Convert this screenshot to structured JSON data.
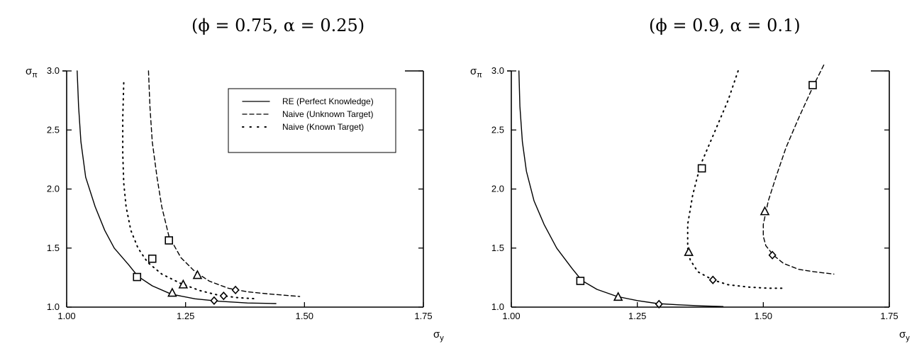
{
  "chart_data": [
    {
      "type": "line",
      "title": "(ϕ = 0.75, α = 0.25)",
      "xlabel": "σy",
      "ylabel": "σπ",
      "xlim": [
        1.0,
        1.75
      ],
      "ylim": [
        1.0,
        3.0
      ],
      "xticks": [
        "1.00",
        "1.25",
        "1.50",
        "1.75"
      ],
      "yticks": [
        "1.0",
        "1.5",
        "2.0",
        "2.5",
        "3.0"
      ],
      "legend": {
        "placement": "top-right",
        "entries": [
          "RE (Perfect Knowledge)",
          "Naive (Unknown Target)",
          "Naive (Known Target)"
        ]
      },
      "series": [
        {
          "name": "RE (Perfect Knowledge)",
          "style": "solid",
          "x": [
            1.022,
            1.025,
            1.03,
            1.04,
            1.06,
            1.08,
            1.1,
            1.13,
            1.15,
            1.18,
            1.22,
            1.27,
            1.32,
            1.38,
            1.44
          ],
          "y": [
            3.0,
            2.7,
            2.4,
            2.1,
            1.85,
            1.65,
            1.5,
            1.36,
            1.26,
            1.18,
            1.11,
            1.07,
            1.05,
            1.035,
            1.03
          ]
        },
        {
          "name": "Naive (Unknown Target)",
          "style": "dashed",
          "x": [
            1.172,
            1.175,
            1.18,
            1.19,
            1.2,
            1.215,
            1.24,
            1.27,
            1.3,
            1.34,
            1.38,
            1.43,
            1.49
          ],
          "y": [
            3.0,
            2.7,
            2.4,
            2.1,
            1.85,
            1.6,
            1.42,
            1.3,
            1.22,
            1.16,
            1.13,
            1.11,
            1.09
          ]
        },
        {
          "name": "Naive (Known Target)",
          "style": "dotted",
          "x": [
            1.12,
            1.118,
            1.118,
            1.12,
            1.125,
            1.135,
            1.15,
            1.17,
            1.2,
            1.24,
            1.28,
            1.32,
            1.36,
            1.4
          ],
          "y": [
            2.9,
            2.6,
            2.3,
            2.05,
            1.85,
            1.65,
            1.5,
            1.38,
            1.28,
            1.2,
            1.14,
            1.1,
            1.08,
            1.07
          ]
        }
      ],
      "markers": [
        {
          "shape": "square",
          "x": 1.148,
          "y": 1.255
        },
        {
          "shape": "square",
          "x": 1.18,
          "y": 1.41
        },
        {
          "shape": "square",
          "x": 1.215,
          "y": 1.565
        },
        {
          "shape": "triangle",
          "x": 1.222,
          "y": 1.12
        },
        {
          "shape": "triangle",
          "x": 1.245,
          "y": 1.19
        },
        {
          "shape": "triangle",
          "x": 1.275,
          "y": 1.27
        },
        {
          "shape": "diamond",
          "x": 1.31,
          "y": 1.055
        },
        {
          "shape": "diamond",
          "x": 1.33,
          "y": 1.095
        },
        {
          "shape": "diamond",
          "x": 1.355,
          "y": 1.145
        }
      ]
    },
    {
      "type": "line",
      "title": "(ϕ = 0.9, α = 0.1)",
      "xlabel": "σy",
      "ylabel": "σπ",
      "xlim": [
        1.0,
        1.75
      ],
      "ylim": [
        1.0,
        3.0
      ],
      "xticks": [
        "1.00",
        "1.25",
        "1.50",
        "1.75"
      ],
      "yticks": [
        "1.0",
        "1.5",
        "2.0",
        "2.5",
        "3.0"
      ],
      "series": [
        {
          "name": "RE (Perfect Knowledge)",
          "style": "solid",
          "x": [
            1.015,
            1.017,
            1.022,
            1.03,
            1.045,
            1.065,
            1.09,
            1.12,
            1.14,
            1.17,
            1.21,
            1.25,
            1.29,
            1.33,
            1.38,
            1.42
          ],
          "y": [
            3.0,
            2.7,
            2.4,
            2.15,
            1.9,
            1.7,
            1.5,
            1.33,
            1.225,
            1.15,
            1.09,
            1.055,
            1.03,
            1.02,
            1.01,
            1.005
          ]
        },
        {
          "name": "Naive (Known Target)",
          "style": "dotted",
          "x": [
            1.45,
            1.43,
            1.4,
            1.375,
            1.36,
            1.35,
            1.35,
            1.355,
            1.37,
            1.4,
            1.43,
            1.47,
            1.51,
            1.54
          ],
          "y": [
            3.0,
            2.75,
            2.45,
            2.2,
            1.95,
            1.7,
            1.5,
            1.4,
            1.3,
            1.23,
            1.19,
            1.17,
            1.16,
            1.16
          ]
        },
        {
          "name": "Naive (Unknown Target)",
          "style": "dashed",
          "x": [
            1.62,
            1.6,
            1.57,
            1.545,
            1.525,
            1.51,
            1.5,
            1.5,
            1.505,
            1.52,
            1.54,
            1.57,
            1.6,
            1.64
          ],
          "y": [
            3.05,
            2.88,
            2.6,
            2.35,
            2.1,
            1.9,
            1.7,
            1.6,
            1.52,
            1.44,
            1.37,
            1.32,
            1.3,
            1.28
          ]
        }
      ],
      "markers": [
        {
          "shape": "square",
          "x": 1.137,
          "y": 1.222
        },
        {
          "shape": "square",
          "x": 1.378,
          "y": 2.175
        },
        {
          "shape": "square",
          "x": 1.598,
          "y": 2.88
        },
        {
          "shape": "triangle",
          "x": 1.212,
          "y": 1.085
        },
        {
          "shape": "triangle",
          "x": 1.352,
          "y": 1.465
        },
        {
          "shape": "triangle",
          "x": 1.503,
          "y": 1.81
        },
        {
          "shape": "diamond",
          "x": 1.293,
          "y": 1.025
        },
        {
          "shape": "diamond",
          "x": 1.4,
          "y": 1.23
        },
        {
          "shape": "diamond",
          "x": 1.518,
          "y": 1.44
        }
      ]
    }
  ]
}
